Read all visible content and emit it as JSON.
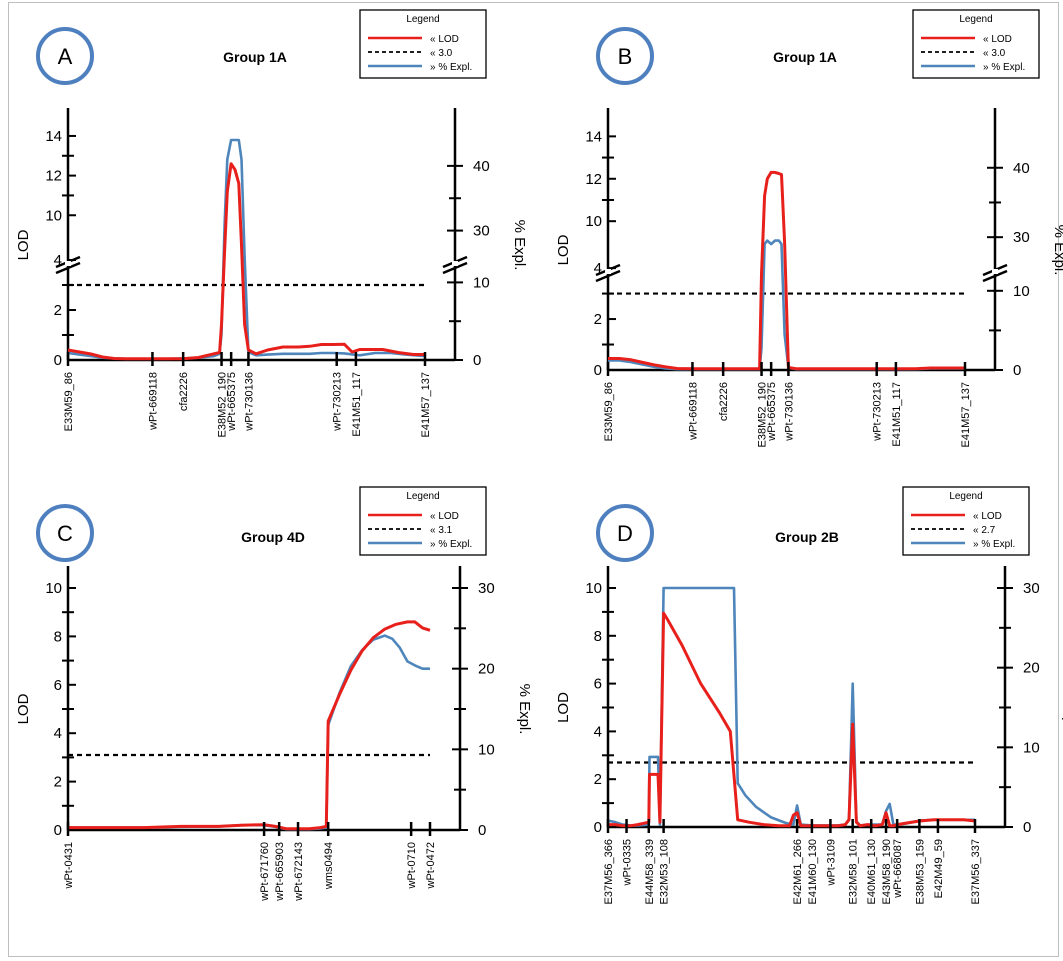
{
  "chart_data": [
    {
      "type": "line",
      "panel_label": "A",
      "title": "Group 1A",
      "ylabel": "LOD",
      "y2label": "% Expl.",
      "ylim": [
        0,
        14
      ],
      "y2lim": [
        0,
        45
      ],
      "y_break": true,
      "left_ticks": [
        "0",
        "2",
        "4",
        "10",
        "12",
        "14"
      ],
      "right_ticks": [
        "0",
        "10",
        "30",
        "40"
      ],
      "legend": {
        "title": "Legend",
        "entries": [
          "« LOD",
          "« 3.0",
          "» % Expl."
        ]
      },
      "threshold": 3.0,
      "markers": [
        {
          "name": "E33M59_86",
          "pos": 0
        },
        {
          "name": "wPt-669118",
          "pos": 22
        },
        {
          "name": "cfa2226",
          "pos": 30
        },
        {
          "name": "E38M52_190",
          "pos": 40
        },
        {
          "name": "wPt-665375",
          "pos": 42.5
        },
        {
          "name": "wPt-730136",
          "pos": 47
        },
        {
          "name": "wPt-730213",
          "pos": 70
        },
        {
          "name": "E41M51_117",
          "pos": 75
        },
        {
          "name": "E41M57_137",
          "pos": 93
        }
      ],
      "series": [
        {
          "name": "LOD",
          "color": "#e8201c",
          "axis": "left",
          "x": [
            0,
            3,
            6,
            9,
            12,
            15,
            18,
            22,
            26,
            30,
            34,
            38,
            39.5,
            40,
            40.8,
            41.5,
            42.5,
            43.5,
            44.5,
            45.2,
            46,
            47,
            49,
            52,
            56,
            60,
            63,
            66,
            69,
            72,
            74,
            76,
            78,
            82,
            86,
            90,
            93
          ],
          "y": [
            0.4,
            0.32,
            0.24,
            0.12,
            0.06,
            0.05,
            0.05,
            0.05,
            0.05,
            0.05,
            0.1,
            0.25,
            0.3,
            4.5,
            8.2,
            11.2,
            12.6,
            12.3,
            11.6,
            8.5,
            4.5,
            0.4,
            0.25,
            0.4,
            0.52,
            0.52,
            0.55,
            0.62,
            0.62,
            0.63,
            0.32,
            0.42,
            0.42,
            0.42,
            0.3,
            0.22,
            0.22
          ]
        },
        {
          "name": "% Expl.",
          "color": "#4e86bb",
          "axis": "right",
          "x": [
            0,
            3,
            6,
            9,
            12,
            15,
            18,
            22,
            26,
            30,
            34,
            38,
            39.5,
            40,
            40.8,
            41.5,
            42.5,
            43.5,
            44.5,
            45.2,
            46,
            47,
            49,
            52,
            56,
            60,
            63,
            66,
            69,
            72,
            76,
            80,
            84,
            88,
            93
          ],
          "y": [
            0.9,
            0.7,
            0.5,
            0.3,
            0.2,
            0.15,
            0.15,
            0.15,
            0.15,
            0.2,
            0.3,
            0.5,
            0.8,
            14,
            31,
            41,
            44,
            44,
            44,
            41,
            26,
            1.0,
            0.6,
            0.7,
            0.8,
            0.8,
            0.8,
            0.9,
            0.9,
            0.85,
            0.6,
            0.9,
            0.9,
            0.7,
            0.5
          ]
        }
      ]
    },
    {
      "type": "line",
      "panel_label": "B",
      "title": "Group 1A",
      "ylabel": "LOD",
      "y2label": "% Expl.",
      "ylim": [
        0,
        14
      ],
      "y2lim": [
        0,
        45
      ],
      "y_break": true,
      "left_ticks": [
        "0",
        "2",
        "4",
        "10",
        "12",
        "14"
      ],
      "right_ticks": [
        "0",
        "10",
        "30",
        "40"
      ],
      "legend": {
        "title": "Legend",
        "entries": [
          "« LOD",
          "« 3.0",
          "» % Expl."
        ]
      },
      "threshold": 3.0,
      "markers": [
        {
          "name": "E33M59_86",
          "pos": 0
        },
        {
          "name": "wPt-669118",
          "pos": 22
        },
        {
          "name": "cfa2226",
          "pos": 30
        },
        {
          "name": "E38M52_190",
          "pos": 40
        },
        {
          "name": "wPt-665375",
          "pos": 42.5
        },
        {
          "name": "wPt-730136",
          "pos": 47
        },
        {
          "name": "wPt-730213",
          "pos": 70
        },
        {
          "name": "E41M51_117",
          "pos": 75
        },
        {
          "name": "E41M57_137",
          "pos": 93
        }
      ],
      "series": [
        {
          "name": "LOD",
          "color": "#e8201c",
          "axis": "left",
          "x": [
            0,
            3,
            6,
            9,
            12,
            15,
            18,
            22,
            26,
            30,
            34,
            38,
            39.5,
            40,
            40.8,
            41.5,
            42.5,
            43.5,
            44.5,
            45.2,
            46,
            47,
            49,
            52,
            56,
            60,
            63,
            66,
            69,
            72,
            76,
            80,
            84,
            88,
            93
          ],
          "y": [
            0.45,
            0.45,
            0.4,
            0.3,
            0.2,
            0.12,
            0.06,
            0.05,
            0.05,
            0.05,
            0.05,
            0.05,
            0.05,
            7.5,
            11.2,
            12.0,
            12.3,
            12.3,
            12.25,
            12.2,
            9.0,
            0.1,
            0.05,
            0.05,
            0.05,
            0.05,
            0.05,
            0.05,
            0.05,
            0.05,
            0.05,
            0.05,
            0.08,
            0.08,
            0.08
          ]
        },
        {
          "name": "% Expl.",
          "color": "#4e86bb",
          "axis": "right",
          "x": [
            0,
            3,
            6,
            9,
            12,
            15,
            18,
            22,
            26,
            30,
            34,
            38,
            39.5,
            40,
            40.8,
            41.5,
            42.5,
            43.5,
            44.5,
            45.2,
            46,
            47,
            49,
            52,
            56,
            60,
            63,
            66,
            69,
            72,
            76,
            80,
            84,
            88,
            93
          ],
          "y": [
            1.2,
            1.2,
            1.0,
            0.7,
            0.4,
            0.2,
            0.1,
            0.1,
            0.1,
            0.1,
            0.1,
            0.1,
            0.1,
            14,
            29,
            29.5,
            29,
            29.5,
            29.5,
            29,
            16,
            0.3,
            0.1,
            0.1,
            0.1,
            0.1,
            0.1,
            0.1,
            0.1,
            0.1,
            0.1,
            0.1,
            0.2,
            0.2,
            0.2
          ]
        }
      ]
    },
    {
      "type": "line",
      "panel_label": "C",
      "title": "Group 4D",
      "ylabel": "LOD",
      "y2label": "% Expl.",
      "ylim": [
        0,
        10
      ],
      "y2lim": [
        0,
        30
      ],
      "y_break": false,
      "left_ticks": [
        "0",
        "2",
        "4",
        "6",
        "8",
        "10"
      ],
      "right_ticks": [
        "0",
        "10",
        "20",
        "30"
      ],
      "legend": {
        "title": "Legend",
        "entries": [
          "« LOD",
          "« 3.1",
          "» % Expl."
        ]
      },
      "threshold": 3.1,
      "markers": [
        {
          "name": "wPt-0431",
          "pos": 0
        },
        {
          "name": "wPt-671760",
          "pos": 52
        },
        {
          "name": "wPt-665903",
          "pos": 56
        },
        {
          "name": "wPt-672143",
          "pos": 61
        },
        {
          "name": "wms0494",
          "pos": 69
        },
        {
          "name": "wPt-0710",
          "pos": 91
        },
        {
          "name": "wPt-0472",
          "pos": 96
        }
      ],
      "series": [
        {
          "name": "LOD",
          "color": "#e8201c",
          "axis": "left",
          "x": [
            0,
            10,
            20,
            30,
            40,
            46,
            52,
            55,
            58,
            61,
            64,
            67,
            68.5,
            69,
            72,
            75,
            78,
            81,
            84,
            87,
            90,
            92,
            94,
            96
          ],
          "y": [
            0.1,
            0.1,
            0.1,
            0.15,
            0.15,
            0.2,
            0.22,
            0.15,
            0.05,
            0.05,
            0.05,
            0.1,
            0.15,
            4.5,
            5.6,
            6.6,
            7.4,
            7.95,
            8.3,
            8.5,
            8.6,
            8.6,
            8.35,
            8.25
          ]
        },
        {
          "name": "% Expl.",
          "color": "#4e86bb",
          "axis": "right",
          "x": [
            0,
            10,
            20,
            30,
            40,
            46,
            52,
            55,
            58,
            61,
            64,
            67,
            68.5,
            69,
            72,
            75,
            78,
            81,
            84,
            86,
            88,
            90,
            92,
            94,
            96
          ],
          "y": [
            0.3,
            0.3,
            0.3,
            0.4,
            0.45,
            0.6,
            0.6,
            0.4,
            0.1,
            0.1,
            0.1,
            0.2,
            0.3,
            13,
            17,
            20.3,
            22.3,
            23.6,
            24.1,
            23.7,
            22.6,
            20.9,
            20.4,
            20.0,
            20.0
          ]
        }
      ]
    },
    {
      "type": "line",
      "panel_label": "D",
      "title": "Group 2B",
      "ylabel": "LOD",
      "y2label": "% Expl.",
      "ylim": [
        0,
        10
      ],
      "y2lim": [
        0,
        30
      ],
      "y_break": false,
      "left_ticks": [
        "0",
        "2",
        "4",
        "6",
        "8",
        "10"
      ],
      "right_ticks": [
        "0",
        "10",
        "20",
        "30"
      ],
      "legend": {
        "title": "Legend",
        "entries": [
          "« LOD",
          "« 2.7",
          "» % Expl."
        ]
      },
      "threshold": 2.7,
      "markers": [
        {
          "name": "E37M56_366",
          "pos": 0
        },
        {
          "name": "wPt-0335",
          "pos": 5
        },
        {
          "name": "E44M58_339",
          "pos": 11
        },
        {
          "name": "E32M53_108",
          "pos": 15
        },
        {
          "name": "E42M61_266",
          "pos": 51
        },
        {
          "name": "E41M60_130",
          "pos": 55
        },
        {
          "name": "wPt-3109",
          "pos": 60
        },
        {
          "name": "E32M58_101",
          "pos": 66
        },
        {
          "name": "E40M61_130",
          "pos": 71
        },
        {
          "name": "E43M58_190",
          "pos": 75
        },
        {
          "name": "wPt-668087",
          "pos": 78
        },
        {
          "name": "E38M53_159",
          "pos": 84
        },
        {
          "name": "E42M49_59",
          "pos": 89
        },
        {
          "name": "E37M56_337",
          "pos": 99
        }
      ],
      "series": [
        {
          "name": "LOD",
          "color": "#e8201c",
          "axis": "left",
          "x": [
            0,
            2,
            4,
            6,
            8,
            11,
            11.2,
            13.5,
            14,
            15,
            16,
            20,
            25,
            30,
            33,
            35,
            38,
            42,
            46,
            49,
            50,
            51,
            52,
            55,
            58,
            60,
            62,
            64,
            65,
            66,
            67,
            68,
            70,
            72,
            74,
            75,
            76,
            77,
            78,
            80,
            84,
            88,
            92,
            96,
            99
          ],
          "y": [
            0.1,
            0.1,
            0.05,
            0.05,
            0.1,
            0.2,
            2.2,
            2.2,
            0.2,
            8.95,
            8.7,
            7.6,
            6.0,
            4.8,
            4.0,
            0.3,
            0.2,
            0.1,
            0.05,
            0.05,
            0.5,
            0.6,
            0.05,
            0.05,
            0.05,
            0.05,
            0.05,
            0.1,
            0.3,
            4.3,
            0.2,
            0.05,
            0.1,
            0.05,
            0.1,
            0.6,
            0.05,
            0.05,
            0.1,
            0.15,
            0.25,
            0.3,
            0.3,
            0.3,
            0.25
          ]
        },
        {
          "name": "% Expl.",
          "color": "#4e86bb",
          "axis": "right",
          "x": [
            0,
            2,
            4,
            6,
            8,
            11,
            11.2,
            13.5,
            14,
            15,
            18,
            22,
            26,
            30,
            33,
            34,
            35,
            37,
            40,
            44,
            48,
            50,
            51,
            52,
            55,
            58,
            60,
            62,
            64,
            65,
            66,
            67,
            68,
            70,
            72,
            74,
            75,
            76,
            77,
            78,
            80,
            84,
            88,
            92,
            96,
            99
          ],
          "y": [
            0.8,
            0.6,
            0.3,
            0.2,
            0.2,
            0.3,
            8.8,
            8.8,
            0.3,
            30,
            30,
            30,
            30,
            30,
            30,
            30,
            5.5,
            4,
            2.5,
            1.2,
            0.5,
            0.3,
            2.7,
            0.3,
            0.2,
            0.2,
            0.2,
            0.2,
            0.3,
            1.0,
            18,
            0.7,
            0.2,
            0.3,
            0.3,
            0.3,
            2.0,
            2.9,
            0.3,
            0.3,
            0.4,
            0.8,
            0.9,
            0.9,
            0.9,
            0.9
          ]
        }
      ]
    }
  ]
}
